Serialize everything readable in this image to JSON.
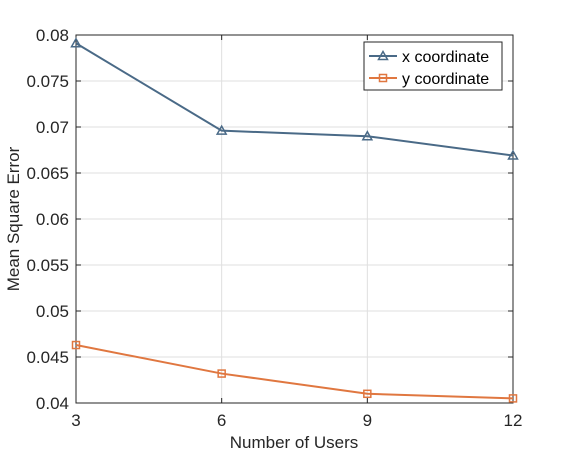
{
  "chart_data": {
    "type": "line",
    "title": "",
    "xlabel": "Number of Users",
    "ylabel": "Mean Square Error",
    "x": [
      3,
      6,
      9,
      12
    ],
    "xlim": [
      3,
      12
    ],
    "ylim": [
      0.04,
      0.08
    ],
    "xticks": [
      3,
      6,
      9,
      12
    ],
    "xtick_labels": [
      "3",
      "6",
      "9",
      "12"
    ],
    "yticks": [
      0.04,
      0.045,
      0.05,
      0.055,
      0.06,
      0.065,
      0.07,
      0.075,
      0.08
    ],
    "ytick_labels": [
      "0.04",
      "0.045",
      "0.05",
      "0.055",
      "0.06",
      "0.065",
      "0.07",
      "0.075",
      "0.08"
    ],
    "grid": true,
    "legend_position": "top-right",
    "series": [
      {
        "name": "x coordinate",
        "values": [
          0.0791,
          0.0696,
          0.069,
          0.0669
        ],
        "color": "#4a6a87",
        "marker": "triangle"
      },
      {
        "name": "y coordinate",
        "values": [
          0.0463,
          0.0432,
          0.041,
          0.0405
        ],
        "color": "#e07740",
        "marker": "square"
      }
    ]
  }
}
